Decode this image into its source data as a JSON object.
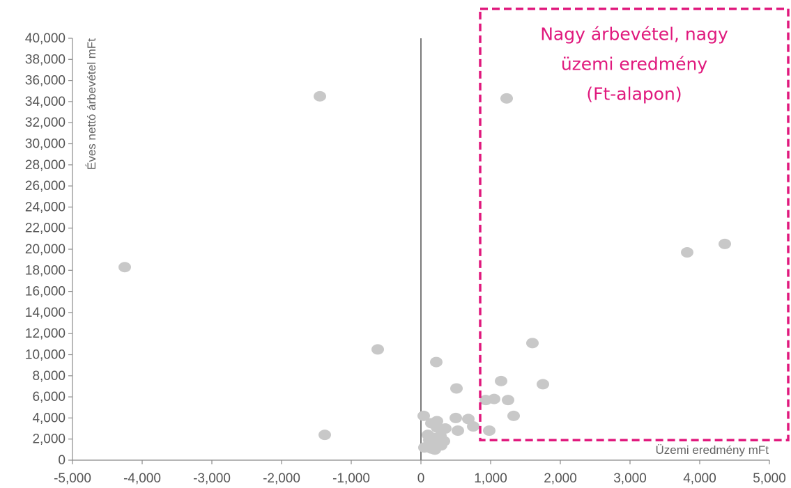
{
  "chart_data": {
    "type": "scatter",
    "xlabel": "Üzemi eredmény mFt",
    "ylabel": "Éves nettó árbevétel mFt",
    "xlim": [
      -5000,
      5000
    ],
    "ylim": [
      0,
      40000
    ],
    "x_ticks": [
      "-5,000",
      "-4,000",
      "-3,000",
      "-2,000",
      "-1,000",
      "0",
      "1,000",
      "2,000",
      "3,000",
      "4,000",
      "5,000"
    ],
    "y_ticks": [
      "0",
      "2,000",
      "4,000",
      "6,000",
      "8,000",
      "10,000",
      "12,000",
      "14,000",
      "16,000",
      "18,000",
      "20,000",
      "22,000",
      "24,000",
      "26,000",
      "28,000",
      "30,000",
      "32,000",
      "34,000",
      "36,000",
      "38,000",
      "40,000"
    ],
    "grid": false,
    "point_color": "#c8c8c8",
    "annotation": {
      "lines": [
        "Nagy árbevétel, nagy",
        "üzemi eredmény",
        "(Ft-alapon)"
      ],
      "color": "#e0197d",
      "x_range": [
        850,
        5300
      ],
      "y_range": [
        1900,
        42800
      ]
    },
    "points": [
      [
        -4250,
        18300
      ],
      [
        -1450,
        34500
      ],
      [
        -1380,
        2400
      ],
      [
        -620,
        10500
      ],
      [
        1230,
        34300
      ],
      [
        3820,
        19700
      ],
      [
        4360,
        20500
      ],
      [
        1600,
        11100
      ],
      [
        1750,
        7200
      ],
      [
        1150,
        7500
      ],
      [
        220,
        9300
      ],
      [
        510,
        6800
      ],
      [
        930,
        5700
      ],
      [
        1050,
        5800
      ],
      [
        1250,
        5700
      ],
      [
        1330,
        4200
      ],
      [
        980,
        2800
      ],
      [
        530,
        2800
      ],
      [
        750,
        3200
      ],
      [
        680,
        3900
      ],
      [
        500,
        4000
      ],
      [
        40,
        4200
      ],
      [
        230,
        3700
      ],
      [
        150,
        3500
      ],
      [
        350,
        3000
      ],
      [
        230,
        3100
      ],
      [
        100,
        2400
      ],
      [
        280,
        2300
      ],
      [
        180,
        2100
      ],
      [
        330,
        1800
      ],
      [
        120,
        1900
      ],
      [
        240,
        1600
      ],
      [
        50,
        1200
      ],
      [
        150,
        1100
      ],
      [
        200,
        1000
      ],
      [
        290,
        1400
      ]
    ]
  }
}
